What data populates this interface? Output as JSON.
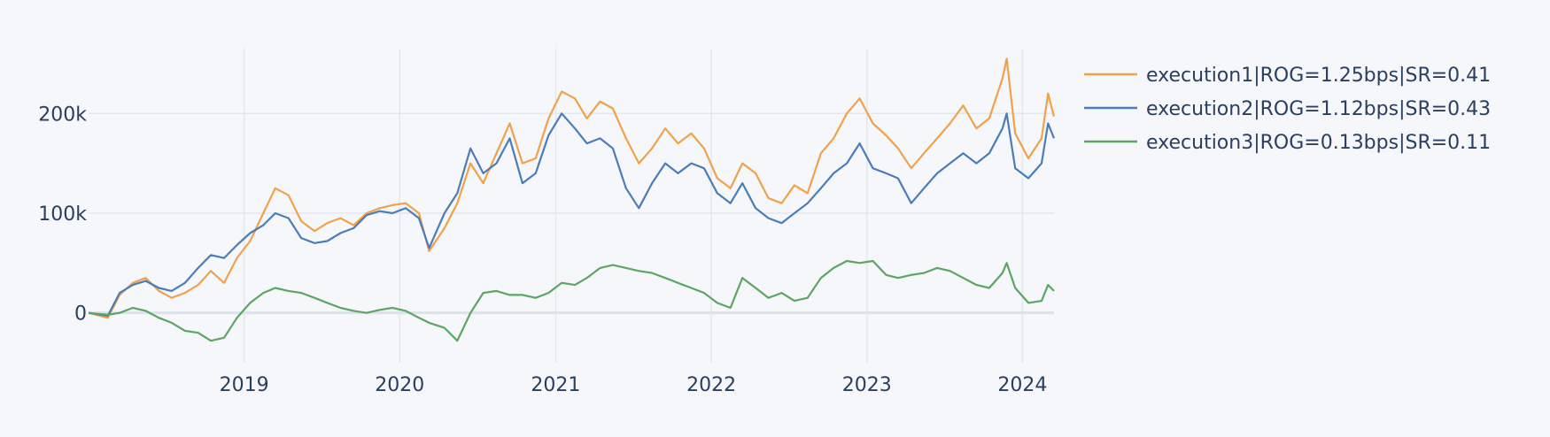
{
  "chart_data": {
    "type": "line",
    "title": "",
    "xlabel": "",
    "ylabel": "",
    "x_range": [
      "2018-01-01",
      "2024-03-15"
    ],
    "y_range": [
      -50000,
      265000
    ],
    "x_ticks": [
      {
        "label": "2019",
        "date": "2019-01-01"
      },
      {
        "label": "2020",
        "date": "2020-01-01"
      },
      {
        "label": "2021",
        "date": "2021-01-01"
      },
      {
        "label": "2022",
        "date": "2022-01-01"
      },
      {
        "label": "2023",
        "date": "2023-01-01"
      },
      {
        "label": "2024",
        "date": "2024-01-01"
      }
    ],
    "y_ticks": [
      {
        "label": "0",
        "value": 0
      },
      {
        "label": "100k",
        "value": 100000
      },
      {
        "label": "200k",
        "value": 200000
      }
    ],
    "grid": true,
    "legend_position": "top-right",
    "series": [
      {
        "name": "execution1|ROG=1.25bps|SR=0.41",
        "color": "#f1a14b",
        "points": [
          [
            "2018-01-01",
            0
          ],
          [
            "2018-02-15",
            -5000
          ],
          [
            "2018-03-15",
            18000
          ],
          [
            "2018-04-15",
            30000
          ],
          [
            "2018-05-15",
            35000
          ],
          [
            "2018-06-15",
            22000
          ],
          [
            "2018-07-15",
            15000
          ],
          [
            "2018-08-15",
            20000
          ],
          [
            "2018-09-15",
            28000
          ],
          [
            "2018-10-15",
            42000
          ],
          [
            "2018-11-15",
            30000
          ],
          [
            "2018-12-15",
            55000
          ],
          [
            "2019-01-15",
            72000
          ],
          [
            "2019-02-15",
            100000
          ],
          [
            "2019-03-15",
            125000
          ],
          [
            "2019-04-15",
            118000
          ],
          [
            "2019-05-15",
            92000
          ],
          [
            "2019-06-15",
            82000
          ],
          [
            "2019-07-15",
            90000
          ],
          [
            "2019-08-15",
            95000
          ],
          [
            "2019-09-15",
            88000
          ],
          [
            "2019-10-15",
            100000
          ],
          [
            "2019-11-15",
            105000
          ],
          [
            "2019-12-15",
            108000
          ],
          [
            "2020-01-15",
            110000
          ],
          [
            "2020-02-15",
            100000
          ],
          [
            "2020-03-10",
            62000
          ],
          [
            "2020-04-15",
            85000
          ],
          [
            "2020-05-15",
            110000
          ],
          [
            "2020-06-15",
            150000
          ],
          [
            "2020-07-15",
            130000
          ],
          [
            "2020-08-15",
            160000
          ],
          [
            "2020-09-15",
            190000
          ],
          [
            "2020-10-15",
            150000
          ],
          [
            "2020-11-15",
            155000
          ],
          [
            "2020-12-15",
            195000
          ],
          [
            "2021-01-15",
            222000
          ],
          [
            "2021-02-15",
            215000
          ],
          [
            "2021-03-15",
            195000
          ],
          [
            "2021-04-15",
            212000
          ],
          [
            "2021-05-15",
            205000
          ],
          [
            "2021-06-15",
            175000
          ],
          [
            "2021-07-15",
            150000
          ],
          [
            "2021-08-15",
            165000
          ],
          [
            "2021-09-15",
            185000
          ],
          [
            "2021-10-15",
            170000
          ],
          [
            "2021-11-15",
            180000
          ],
          [
            "2021-12-15",
            165000
          ],
          [
            "2022-01-15",
            135000
          ],
          [
            "2022-02-15",
            125000
          ],
          [
            "2022-03-15",
            150000
          ],
          [
            "2022-04-15",
            140000
          ],
          [
            "2022-05-15",
            115000
          ],
          [
            "2022-06-15",
            110000
          ],
          [
            "2022-07-15",
            128000
          ],
          [
            "2022-08-15",
            120000
          ],
          [
            "2022-09-15",
            160000
          ],
          [
            "2022-10-15",
            175000
          ],
          [
            "2022-11-15",
            200000
          ],
          [
            "2022-12-15",
            215000
          ],
          [
            "2023-01-15",
            190000
          ],
          [
            "2023-02-15",
            178000
          ],
          [
            "2023-03-15",
            165000
          ],
          [
            "2023-04-15",
            145000
          ],
          [
            "2023-05-15",
            160000
          ],
          [
            "2023-06-15",
            175000
          ],
          [
            "2023-07-15",
            190000
          ],
          [
            "2023-08-15",
            208000
          ],
          [
            "2023-09-15",
            185000
          ],
          [
            "2023-10-15",
            195000
          ],
          [
            "2023-11-15",
            235000
          ],
          [
            "2023-11-25",
            255000
          ],
          [
            "2023-12-15",
            180000
          ],
          [
            "2024-01-15",
            155000
          ],
          [
            "2024-02-15",
            175000
          ],
          [
            "2024-03-01",
            220000
          ],
          [
            "2024-03-15",
            197000
          ]
        ]
      },
      {
        "name": "execution2|ROG=1.12bps|SR=0.43",
        "color": "#4b7db8",
        "points": [
          [
            "2018-01-01",
            0
          ],
          [
            "2018-02-15",
            -3000
          ],
          [
            "2018-03-15",
            20000
          ],
          [
            "2018-04-15",
            28000
          ],
          [
            "2018-05-15",
            32000
          ],
          [
            "2018-06-15",
            25000
          ],
          [
            "2018-07-15",
            22000
          ],
          [
            "2018-08-15",
            30000
          ],
          [
            "2018-09-15",
            45000
          ],
          [
            "2018-10-15",
            58000
          ],
          [
            "2018-11-15",
            55000
          ],
          [
            "2018-12-15",
            68000
          ],
          [
            "2019-01-15",
            80000
          ],
          [
            "2019-02-15",
            88000
          ],
          [
            "2019-03-15",
            100000
          ],
          [
            "2019-04-15",
            95000
          ],
          [
            "2019-05-15",
            75000
          ],
          [
            "2019-06-15",
            70000
          ],
          [
            "2019-07-15",
            72000
          ],
          [
            "2019-08-15",
            80000
          ],
          [
            "2019-09-15",
            85000
          ],
          [
            "2019-10-15",
            98000
          ],
          [
            "2019-11-15",
            102000
          ],
          [
            "2019-12-15",
            100000
          ],
          [
            "2020-01-15",
            105000
          ],
          [
            "2020-02-15",
            95000
          ],
          [
            "2020-03-10",
            65000
          ],
          [
            "2020-04-15",
            100000
          ],
          [
            "2020-05-15",
            120000
          ],
          [
            "2020-06-15",
            165000
          ],
          [
            "2020-07-15",
            140000
          ],
          [
            "2020-08-15",
            150000
          ],
          [
            "2020-09-15",
            175000
          ],
          [
            "2020-10-15",
            130000
          ],
          [
            "2020-11-15",
            140000
          ],
          [
            "2020-12-15",
            178000
          ],
          [
            "2021-01-15",
            200000
          ],
          [
            "2021-02-15",
            185000
          ],
          [
            "2021-03-15",
            170000
          ],
          [
            "2021-04-15",
            175000
          ],
          [
            "2021-05-15",
            165000
          ],
          [
            "2021-06-15",
            125000
          ],
          [
            "2021-07-15",
            105000
          ],
          [
            "2021-08-15",
            130000
          ],
          [
            "2021-09-15",
            150000
          ],
          [
            "2021-10-15",
            140000
          ],
          [
            "2021-11-15",
            150000
          ],
          [
            "2021-12-15",
            145000
          ],
          [
            "2022-01-15",
            120000
          ],
          [
            "2022-02-15",
            110000
          ],
          [
            "2022-03-15",
            130000
          ],
          [
            "2022-04-15",
            105000
          ],
          [
            "2022-05-15",
            95000
          ],
          [
            "2022-06-15",
            90000
          ],
          [
            "2022-07-15",
            100000
          ],
          [
            "2022-08-15",
            110000
          ],
          [
            "2022-09-15",
            125000
          ],
          [
            "2022-10-15",
            140000
          ],
          [
            "2022-11-15",
            150000
          ],
          [
            "2022-12-15",
            170000
          ],
          [
            "2023-01-15",
            145000
          ],
          [
            "2023-02-15",
            140000
          ],
          [
            "2023-03-15",
            135000
          ],
          [
            "2023-04-15",
            110000
          ],
          [
            "2023-05-15",
            125000
          ],
          [
            "2023-06-15",
            140000
          ],
          [
            "2023-07-15",
            150000
          ],
          [
            "2023-08-15",
            160000
          ],
          [
            "2023-09-15",
            150000
          ],
          [
            "2023-10-15",
            160000
          ],
          [
            "2023-11-15",
            185000
          ],
          [
            "2023-11-25",
            200000
          ],
          [
            "2023-12-15",
            145000
          ],
          [
            "2024-01-15",
            135000
          ],
          [
            "2024-02-15",
            150000
          ],
          [
            "2024-03-01",
            190000
          ],
          [
            "2024-03-15",
            175000
          ]
        ]
      },
      {
        "name": "execution3|ROG=0.13bps|SR=0.11",
        "color": "#5ca565",
        "points": [
          [
            "2018-01-01",
            0
          ],
          [
            "2018-02-15",
            -2000
          ],
          [
            "2018-03-15",
            0
          ],
          [
            "2018-04-15",
            5000
          ],
          [
            "2018-05-15",
            2000
          ],
          [
            "2018-06-15",
            -5000
          ],
          [
            "2018-07-15",
            -10000
          ],
          [
            "2018-08-15",
            -18000
          ],
          [
            "2018-09-15",
            -20000
          ],
          [
            "2018-10-15",
            -28000
          ],
          [
            "2018-11-15",
            -25000
          ],
          [
            "2018-12-15",
            -5000
          ],
          [
            "2019-01-15",
            10000
          ],
          [
            "2019-02-15",
            20000
          ],
          [
            "2019-03-15",
            25000
          ],
          [
            "2019-04-15",
            22000
          ],
          [
            "2019-05-15",
            20000
          ],
          [
            "2019-06-15",
            15000
          ],
          [
            "2019-07-15",
            10000
          ],
          [
            "2019-08-15",
            5000
          ],
          [
            "2019-09-15",
            2000
          ],
          [
            "2019-10-15",
            0
          ],
          [
            "2019-11-15",
            3000
          ],
          [
            "2019-12-15",
            5000
          ],
          [
            "2020-01-15",
            2000
          ],
          [
            "2020-02-15",
            -5000
          ],
          [
            "2020-03-10",
            -10000
          ],
          [
            "2020-04-15",
            -15000
          ],
          [
            "2020-05-15",
            -28000
          ],
          [
            "2020-06-15",
            0
          ],
          [
            "2020-07-15",
            20000
          ],
          [
            "2020-08-15",
            22000
          ],
          [
            "2020-09-15",
            18000
          ],
          [
            "2020-10-15",
            18000
          ],
          [
            "2020-11-15",
            15000
          ],
          [
            "2020-12-15",
            20000
          ],
          [
            "2021-01-15",
            30000
          ],
          [
            "2021-02-15",
            28000
          ],
          [
            "2021-03-15",
            35000
          ],
          [
            "2021-04-15",
            45000
          ],
          [
            "2021-05-15",
            48000
          ],
          [
            "2021-06-15",
            45000
          ],
          [
            "2021-07-15",
            42000
          ],
          [
            "2021-08-15",
            40000
          ],
          [
            "2021-09-15",
            35000
          ],
          [
            "2021-10-15",
            30000
          ],
          [
            "2021-11-15",
            25000
          ],
          [
            "2021-12-15",
            20000
          ],
          [
            "2022-01-15",
            10000
          ],
          [
            "2022-02-15",
            5000
          ],
          [
            "2022-03-15",
            35000
          ],
          [
            "2022-04-15",
            25000
          ],
          [
            "2022-05-15",
            15000
          ],
          [
            "2022-06-15",
            20000
          ],
          [
            "2022-07-15",
            12000
          ],
          [
            "2022-08-15",
            15000
          ],
          [
            "2022-09-15",
            35000
          ],
          [
            "2022-10-15",
            45000
          ],
          [
            "2022-11-15",
            52000
          ],
          [
            "2022-12-15",
            50000
          ],
          [
            "2023-01-15",
            52000
          ],
          [
            "2023-02-15",
            38000
          ],
          [
            "2023-03-15",
            35000
          ],
          [
            "2023-04-15",
            38000
          ],
          [
            "2023-05-15",
            40000
          ],
          [
            "2023-06-15",
            45000
          ],
          [
            "2023-07-15",
            42000
          ],
          [
            "2023-08-15",
            35000
          ],
          [
            "2023-09-15",
            28000
          ],
          [
            "2023-10-15",
            25000
          ],
          [
            "2023-11-15",
            40000
          ],
          [
            "2023-11-25",
            50000
          ],
          [
            "2023-12-15",
            25000
          ],
          [
            "2024-01-15",
            10000
          ],
          [
            "2024-02-15",
            12000
          ],
          [
            "2024-03-01",
            28000
          ],
          [
            "2024-03-15",
            22000
          ]
        ]
      }
    ]
  }
}
